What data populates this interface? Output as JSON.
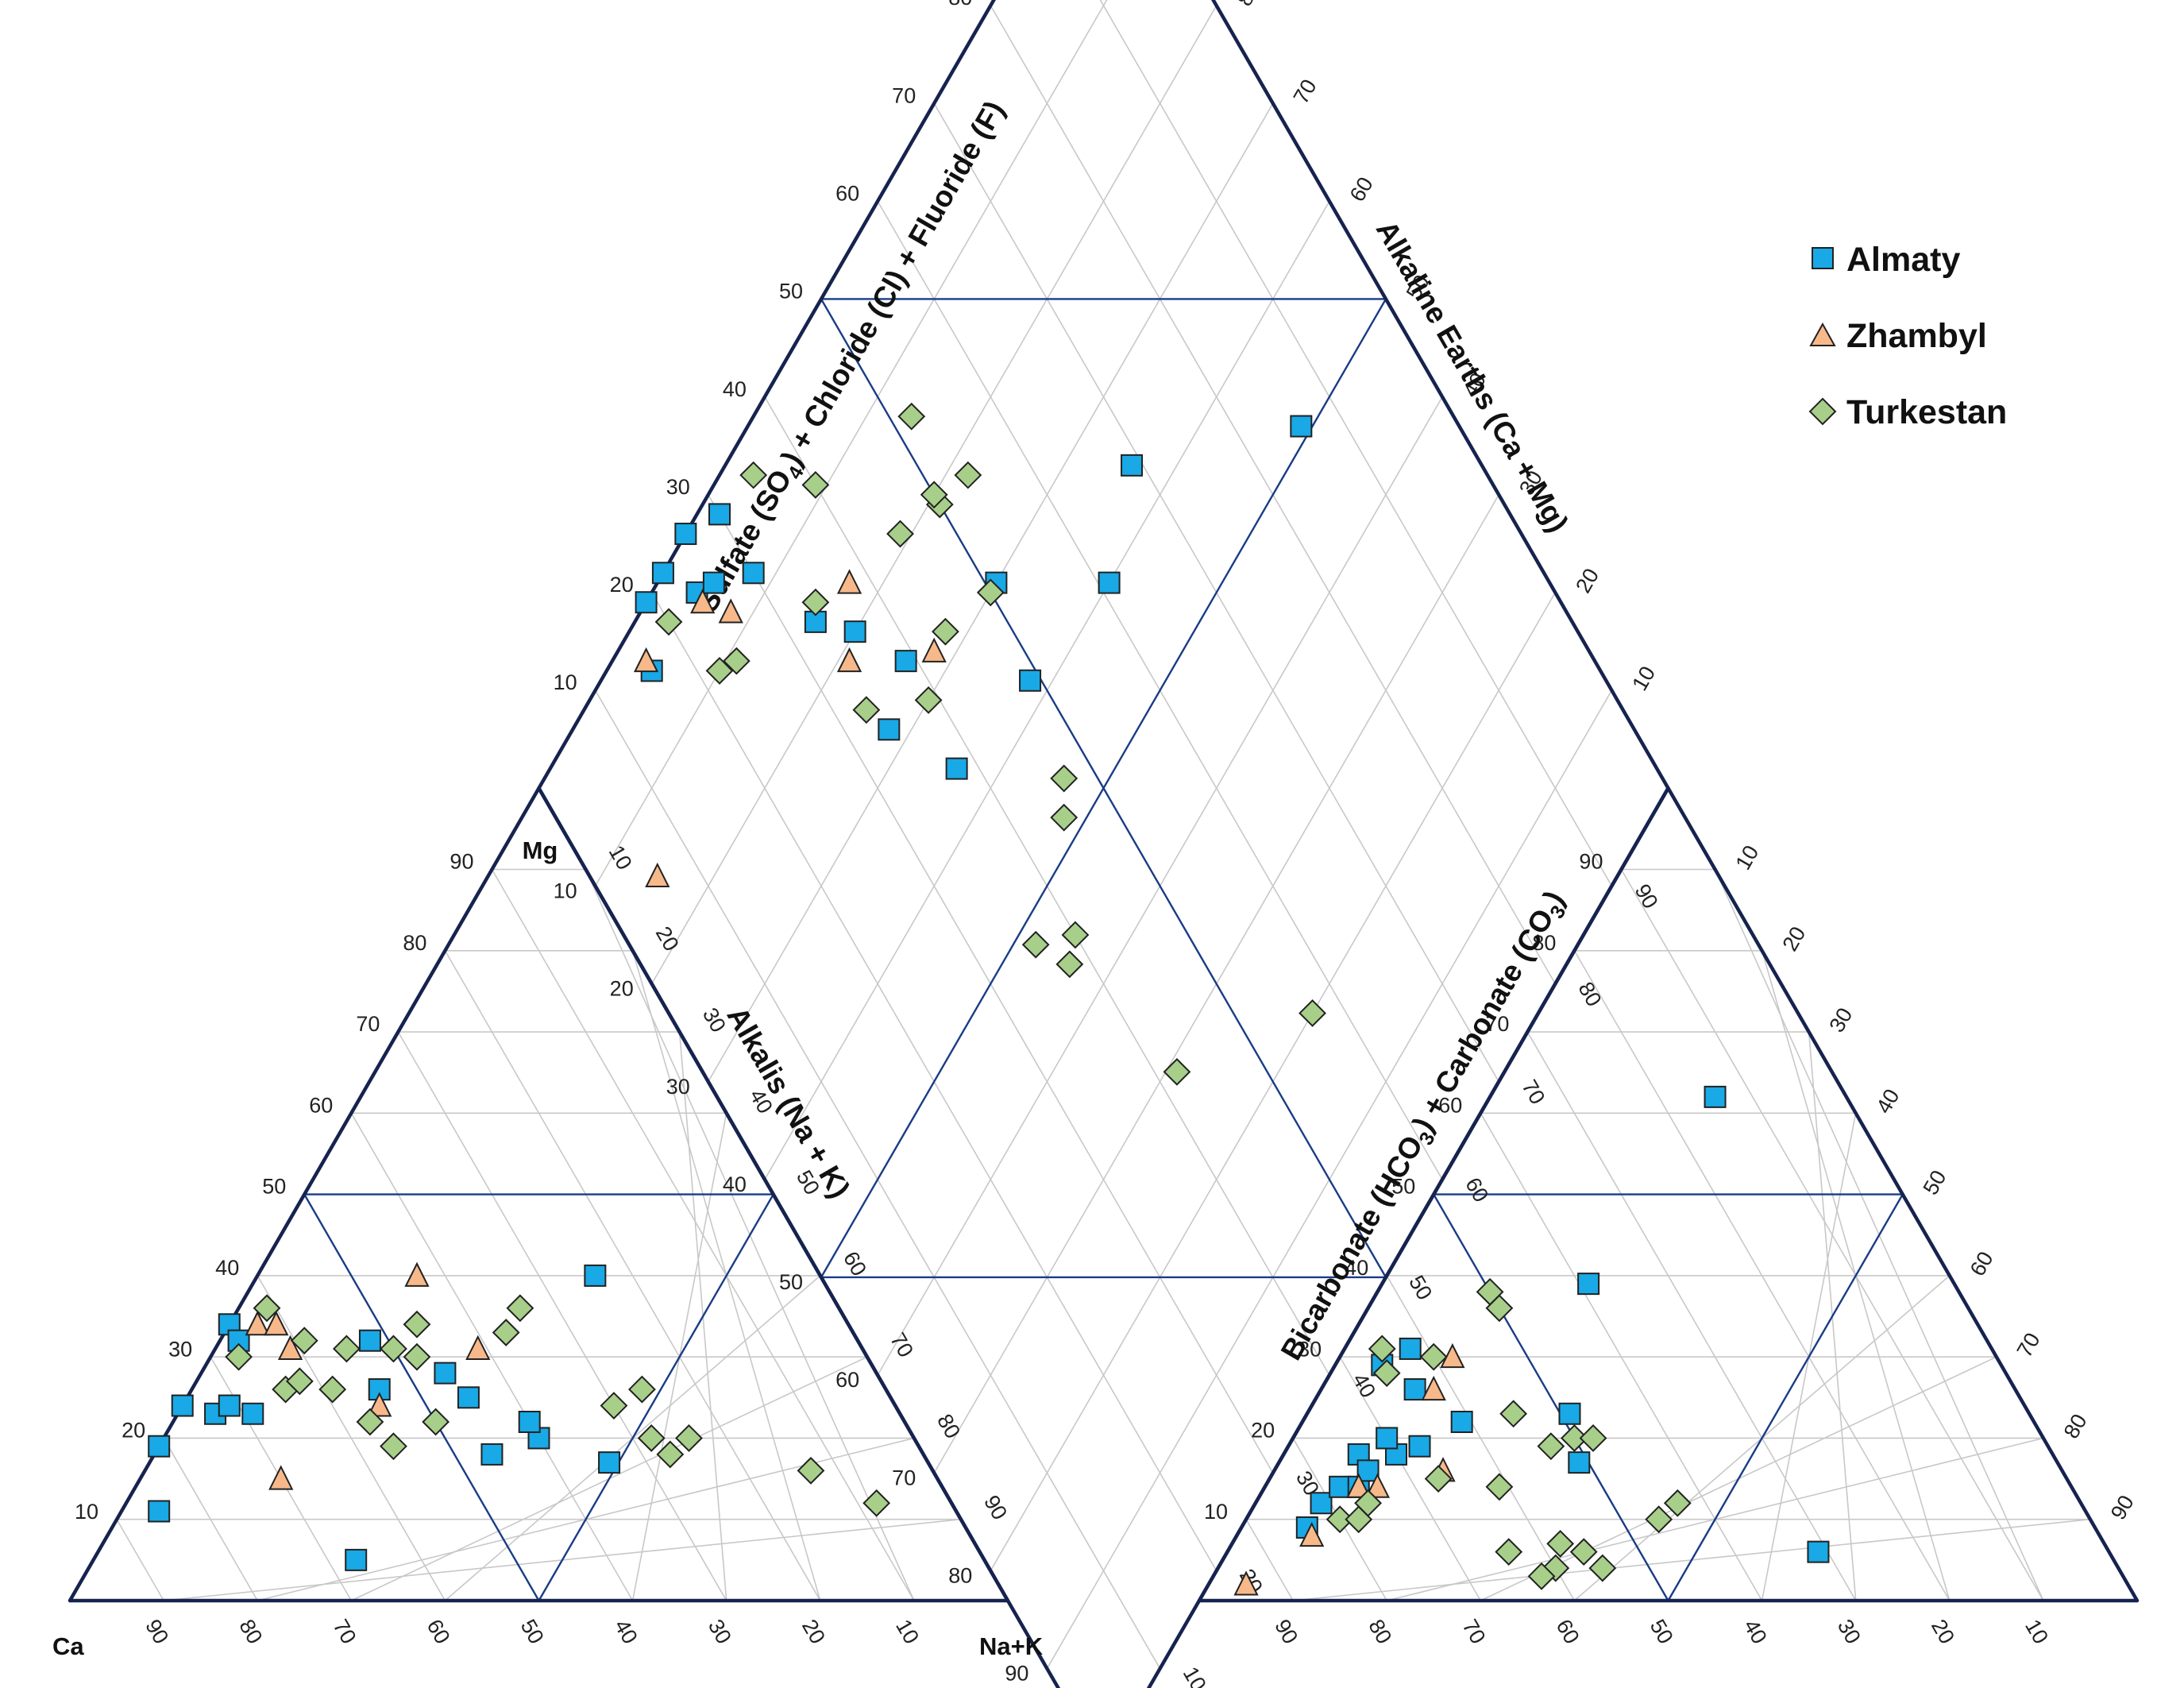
{
  "chart_data": {
    "type": "scatter",
    "subtype": "piper-diagram",
    "series": [
      {
        "name": "Almaty",
        "color": "#18a9e6",
        "marker": "square",
        "cation_points": [
          {
            "Ca": 85,
            "NaK": 4,
            "Mg": 11
          },
          {
            "Ca": 81,
            "NaK": 0,
            "Mg": 19
          },
          {
            "Ca": 76,
            "NaK": 0,
            "Mg": 24
          },
          {
            "Ca": 73,
            "NaK": 4,
            "Mg": 23
          },
          {
            "Ca": 71,
            "NaK": 5,
            "Mg": 24
          },
          {
            "Ca": 69,
            "NaK": 8,
            "Mg": 23
          },
          {
            "Ca": 66,
            "NaK": 0,
            "Mg": 34
          },
          {
            "Ca": 66,
            "NaK": 2,
            "Mg": 32
          },
          {
            "Ca": 67,
            "NaK": 28,
            "Mg": 5
          },
          {
            "Ca": 54,
            "NaK": 20,
            "Mg": 26
          },
          {
            "Ca": 52,
            "NaK": 16,
            "Mg": 32
          },
          {
            "Ca": 46,
            "NaK": 36,
            "Mg": 18
          },
          {
            "Ca": 46,
            "NaK": 26,
            "Mg": 28
          },
          {
            "Ca": 45,
            "NaK": 30,
            "Mg": 25
          },
          {
            "Ca": 40,
            "NaK": 40,
            "Mg": 20
          },
          {
            "Ca": 40,
            "NaK": 38,
            "Mg": 22
          },
          {
            "Ca": 34,
            "NaK": 49,
            "Mg": 17
          },
          {
            "Ca": 24,
            "NaK": 36,
            "Mg": 40
          }
        ],
        "anion_points": [
          {
            "Cl": 7,
            "HCO3": 84,
            "SO4": 9
          },
          {
            "Cl": 7,
            "HCO3": 81,
            "SO4": 12
          },
          {
            "Cl": 8,
            "HCO3": 78,
            "SO4": 14
          },
          {
            "Cl": 10,
            "HCO3": 76,
            "SO4": 14
          },
          {
            "Cl": 8,
            "HCO3": 74,
            "SO4": 18
          },
          {
            "Cl": 12,
            "HCO3": 70,
            "SO4": 18
          },
          {
            "Cl": 10,
            "HCO3": 74,
            "SO4": 16
          },
          {
            "Cl": 10,
            "HCO3": 70,
            "SO4": 20
          },
          {
            "Cl": 5,
            "HCO3": 66,
            "SO4": 29
          },
          {
            "Cl": 10,
            "HCO3": 64,
            "SO4": 26
          },
          {
            "Cl": 14,
            "HCO3": 67,
            "SO4": 19
          },
          {
            "Cl": 7,
            "HCO3": 62,
            "SO4": 31
          },
          {
            "Cl": 17,
            "HCO3": 61,
            "SO4": 22
          },
          {
            "Cl": 28,
            "HCO3": 49,
            "SO4": 23
          },
          {
            "Cl": 22,
            "HCO3": 39,
            "SO4": 39
          },
          {
            "Cl": 32,
            "HCO3": 51,
            "SO4": 17
          },
          {
            "Cl": 24,
            "HCO3": 14,
            "SO4": 62
          },
          {
            "Cl": 63,
            "HCO3": 31,
            "SO4": 6
          }
        ]
      },
      {
        "name": "Zhambyl",
        "color": "#f7b98a",
        "marker": "triangle",
        "cation_points": [
          {
            "Ca": 70,
            "NaK": 15,
            "Mg": 15
          },
          {
            "Ca": 63,
            "NaK": 3,
            "Mg": 34
          },
          {
            "Ca": 61,
            "NaK": 5,
            "Mg": 34
          },
          {
            "Ca": 61,
            "NaK": 8,
            "Mg": 31
          },
          {
            "Ca": 55,
            "NaK": 21,
            "Mg": 24
          },
          {
            "Ca": 43,
            "NaK": 17,
            "Mg": 40
          },
          {
            "Ca": 41,
            "NaK": 28,
            "Mg": 31
          }
        ],
        "anion_points": [
          {
            "Cl": 4,
            "HCO3": 94,
            "SO4": 2
          },
          {
            "Cl": 8,
            "HCO3": 84,
            "SO4": 8
          },
          {
            "Cl": 10,
            "HCO3": 76,
            "SO4": 14
          },
          {
            "Cl": 12,
            "HCO3": 74,
            "SO4": 14
          },
          {
            "Cl": 18,
            "HCO3": 66,
            "SO4": 16
          },
          {
            "Cl": 12,
            "HCO3": 62,
            "SO4": 26
          },
          {
            "Cl": 12,
            "HCO3": 58,
            "SO4": 30
          }
        ]
      },
      {
        "name": "Turkestan",
        "color": "#a8cf8a",
        "marker": "diamond",
        "cation_points": [
          {
            "Ca": 67,
            "NaK": 3,
            "Mg": 30
          },
          {
            "Ca": 64,
            "NaK": 10,
            "Mg": 26
          },
          {
            "Ca": 62,
            "NaK": 11,
            "Mg": 27
          },
          {
            "Ca": 61,
            "NaK": 3,
            "Mg": 36
          },
          {
            "Ca": 59,
            "NaK": 15,
            "Mg": 26
          },
          {
            "Ca": 59,
            "NaK": 9,
            "Mg": 32
          },
          {
            "Ca": 56,
            "NaK": 25,
            "Mg": 19
          },
          {
            "Ca": 57,
            "NaK": 21,
            "Mg": 22
          },
          {
            "Ca": 55,
            "NaK": 14,
            "Mg": 31
          },
          {
            "Ca": 50,
            "NaK": 28,
            "Mg": 22
          },
          {
            "Ca": 50,
            "NaK": 19,
            "Mg": 31
          },
          {
            "Ca": 48,
            "NaK": 22,
            "Mg": 30
          },
          {
            "Ca": 46,
            "NaK": 20,
            "Mg": 34
          },
          {
            "Ca": 37,
            "NaK": 30,
            "Mg": 33
          },
          {
            "Ca": 34,
            "NaK": 30,
            "Mg": 36
          },
          {
            "Ca": 26,
            "NaK": 48,
            "Mg": 26
          },
          {
            "Ca": 30,
            "NaK": 46,
            "Mg": 24
          },
          {
            "Ca": 28,
            "NaK": 52,
            "Mg": 20
          },
          {
            "Ca": 27,
            "NaK": 55,
            "Mg": 18
          },
          {
            "Ca": 24,
            "NaK": 56,
            "Mg": 20
          },
          {
            "Ca": 13,
            "NaK": 71,
            "Mg": 16
          },
          {
            "Ca": 8,
            "NaK": 80,
            "Mg": 12
          }
        ],
        "anion_points": [
          {
            "Cl": 10,
            "HCO3": 80,
            "SO4": 10
          },
          {
            "Cl": 12,
            "HCO3": 78,
            "SO4": 10
          },
          {
            "Cl": 12,
            "HCO3": 76,
            "SO4": 12
          },
          {
            "Cl": 4,
            "HCO3": 65,
            "SO4": 31
          },
          {
            "Cl": 6,
            "HCO3": 66,
            "SO4": 28
          },
          {
            "Cl": 10,
            "HCO3": 60,
            "SO4": 30
          },
          {
            "Cl": 18,
            "HCO3": 67,
            "SO4": 15
          },
          {
            "Cl": 30,
            "HCO3": 50,
            "SO4": 20
          },
          {
            "Cl": 32,
            "HCO3": 48,
            "SO4": 20
          },
          {
            "Cl": 38,
            "HCO3": 56,
            "SO4": 6
          },
          {
            "Cl": 41,
            "HCO3": 55,
            "SO4": 4
          },
          {
            "Cl": 44,
            "HCO3": 46,
            "SO4": 10
          },
          {
            "Cl": 12,
            "HCO3": 50,
            "SO4": 38
          },
          {
            "Cl": 14,
            "HCO3": 50,
            "SO4": 36
          },
          {
            "Cl": 25,
            "HCO3": 61,
            "SO4": 14
          },
          {
            "Cl": 22,
            "HCO3": 55,
            "SO4": 23
          },
          {
            "Cl": 28,
            "HCO3": 53,
            "SO4": 19
          },
          {
            "Cl": 30,
            "HCO3": 64,
            "SO4": 6
          },
          {
            "Cl": 36,
            "HCO3": 60,
            "SO4": 4
          },
          {
            "Cl": 35,
            "HCO3": 62,
            "SO4": 3
          },
          {
            "Cl": 35,
            "HCO3": 58,
            "SO4": 7
          },
          {
            "Cl": 45,
            "HCO3": 43,
            "SO4": 12
          }
        ]
      }
    ],
    "cation_triangle": {
      "corner_labels": {
        "bottom_left": "Ca",
        "top": "Mg",
        "bottom_right": "Na+K"
      },
      "bottom_ticks": [
        "90",
        "80",
        "70",
        "60",
        "50",
        "40",
        "30",
        "20",
        "10"
      ],
      "left_ticks": [
        "10",
        "20",
        "30",
        "40",
        "50",
        "60",
        "70",
        "80",
        "90"
      ],
      "right_ticks": [
        "10",
        "20",
        "30",
        "40",
        "50",
        "60",
        "70",
        "80",
        "90"
      ],
      "axis_title": "Alkalis (Na + K)"
    },
    "anion_triangle": {
      "bottom_ticks": [
        "90",
        "80",
        "70",
        "60",
        "50",
        "40",
        "30",
        "20",
        "10"
      ],
      "left_ticks": [
        "10",
        "20",
        "30",
        "40",
        "50",
        "60",
        "70",
        "80",
        "90"
      ],
      "right_ticks": [
        "10",
        "20",
        "30",
        "40",
        "50",
        "60",
        "70",
        "80",
        "90"
      ],
      "axis_title": "Bicarbonate (HCO3) + Carbonate (CO3)"
    },
    "diamond": {
      "upper_left_ticks": [
        "10",
        "20",
        "30",
        "40",
        "50",
        "60",
        "70",
        "80",
        "90"
      ],
      "lower_left_ticks": [
        "10",
        "20",
        "30",
        "40",
        "50",
        "60",
        "70",
        "80",
        "90"
      ],
      "upper_right_ticks": [
        "90",
        "80",
        "70",
        "60",
        "50",
        "40",
        "30",
        "20",
        "10"
      ],
      "lower_right_ticks": [
        "10",
        "20",
        "30",
        "40",
        "50",
        "60",
        "70",
        "80",
        "90"
      ],
      "left_axis_title": "Sulfate (SO4) + Chloride (Cl) + Fluoride (F)",
      "right_axis_title": "Alkaline Earths (Ca + Mg)"
    }
  }
}
